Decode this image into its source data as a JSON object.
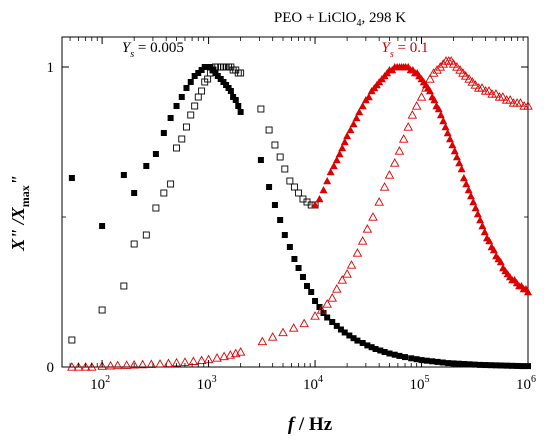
{
  "chart_data": {
    "type": "scatter",
    "title": "PEO + LiClO",
    "title_sub": "4",
    "title_suffix": ", 298 K",
    "xlabel_main": "f",
    "xlabel_unit": " / Hz",
    "ylabel_parts": {
      "x": "X",
      "pp": "\"",
      "slash": " /X",
      "max": "max",
      "pp2": "\""
    },
    "xscale": "log",
    "xlim": [
      42,
      1000000
    ],
    "ylim": [
      0,
      1.1
    ],
    "x_ticks": [
      {
        "value": 100,
        "base": "10",
        "exp": "2"
      },
      {
        "value": 1000,
        "base": "10",
        "exp": "3"
      },
      {
        "value": 10000,
        "base": "10",
        "exp": "4"
      },
      {
        "value": 100000,
        "base": "10",
        "exp": "5"
      },
      {
        "value": 1000000,
        "base": "10",
        "exp": "6"
      }
    ],
    "y_ticks": [
      {
        "value": 0,
        "label": "0"
      },
      {
        "value": 1,
        "label": "1"
      }
    ],
    "annotations": [
      {
        "letter": "Y",
        "sub": "s",
        "text": " = 0.005",
        "color": "#000000",
        "x": 300,
        "y": 1.05
      },
      {
        "letter": "Y",
        "sub": "s",
        "text": " = 0.1",
        "color": "#cc0000",
        "x": 70000,
        "y": 1.05
      }
    ],
    "colors": {
      "black": "#000000",
      "red": "#dd0000"
    },
    "series": [
      {
        "label": "Y_s = 0.005 filled",
        "marker": "square-filled",
        "color": "#000000",
        "x": [
          52,
          100,
          160,
          200,
          260,
          320,
          380,
          440,
          500,
          560,
          620,
          680,
          740,
          800,
          860,
          920,
          980,
          1040,
          1100,
          1160,
          1220,
          1300,
          1380,
          1460,
          1540,
          1620,
          1700,
          1800,
          1900,
          2000,
          3100,
          3700,
          4200,
          4700,
          5200,
          5800,
          6400,
          7000,
          7700,
          8400,
          9200,
          10000,
          11000,
          12000,
          13000,
          14500,
          16000,
          17500,
          19000,
          21000,
          23000,
          25000,
          28000,
          31000,
          34000,
          37000,
          41000,
          45000,
          50000,
          56000,
          62000,
          70000,
          80000,
          90000,
          100000,
          112000,
          126000,
          141000,
          158000,
          178000,
          200000,
          224000,
          251000,
          282000,
          316000,
          355000,
          398000,
          447000,
          501000,
          562000,
          631000,
          708000,
          794000,
          891000,
          1000000
        ],
        "y": [
          0.63,
          0.47,
          0.64,
          0.58,
          0.67,
          0.71,
          0.78,
          0.83,
          0.87,
          0.9,
          0.93,
          0.95,
          0.97,
          0.98,
          0.99,
          1.0,
          1.0,
          1.0,
          0.99,
          0.98,
          0.97,
          0.96,
          0.95,
          0.94,
          0.93,
          0.92,
          0.9,
          0.89,
          0.87,
          0.85,
          0.69,
          0.6,
          0.54,
          0.49,
          0.44,
          0.4,
          0.36,
          0.33,
          0.3,
          0.27,
          0.25,
          0.22,
          0.2,
          0.18,
          0.165,
          0.15,
          0.137,
          0.125,
          0.115,
          0.105,
          0.096,
          0.088,
          0.08,
          0.072,
          0.066,
          0.06,
          0.055,
          0.05,
          0.045,
          0.041,
          0.037,
          0.033,
          0.029,
          0.026,
          0.023,
          0.021,
          0.019,
          0.017,
          0.015,
          0.013,
          0.012,
          0.011,
          0.01,
          0.009,
          0.008,
          0.007,
          0.0065,
          0.006,
          0.0055,
          0.005,
          0.0045,
          0.004,
          0.0035,
          0.003,
          0.003
        ]
      },
      {
        "label": "Y_s = 0.005 open",
        "marker": "square-open",
        "color": "#000000",
        "x": [
          52,
          100,
          160,
          200,
          260,
          320,
          380,
          440,
          500,
          560,
          620,
          680,
          740,
          800,
          860,
          920,
          980,
          1040,
          1100,
          1160,
          1220,
          1300,
          1380,
          1460,
          1540,
          1620,
          1700,
          1800,
          1900,
          2000,
          3100,
          3700,
          4200,
          4700,
          5200,
          5800,
          6400,
          7000,
          7700,
          8400,
          9200,
          10000
        ],
        "y": [
          0.09,
          0.19,
          0.27,
          0.41,
          0.44,
          0.53,
          0.58,
          0.61,
          0.73,
          0.76,
          0.8,
          0.84,
          0.87,
          0.9,
          0.92,
          0.95,
          0.96,
          0.98,
          0.99,
          1.0,
          1.0,
          1.0,
          1.0,
          1.0,
          1.0,
          1.0,
          0.99,
          0.99,
          0.98,
          0.98,
          0.86,
          0.79,
          0.74,
          0.7,
          0.66,
          0.62,
          0.6,
          0.58,
          0.56,
          0.55,
          0.54,
          0.54
        ]
      },
      {
        "label": "Y_s = 0.1 filled",
        "marker": "triangle-filled",
        "color": "#dd0000",
        "x": [
          10000,
          11000,
          12000,
          13000,
          14000,
          15000,
          16000,
          17000,
          18000,
          19000,
          20000,
          21500,
          23000,
          24500,
          26000,
          28000,
          30000,
          32000,
          34000,
          36000,
          38000,
          40000,
          42500,
          45000,
          47500,
          50000,
          53000,
          56000,
          59000,
          62000,
          65000,
          68000,
          71000,
          75000,
          79000,
          83000,
          87000,
          91000,
          95000,
          100000,
          105000,
          110000,
          115000,
          120000,
          126000,
          132000,
          138000,
          145000,
          152000,
          160000,
          168000,
          176000,
          185000,
          195000,
          205000,
          215000,
          226000,
          238000,
          250000,
          263000,
          277000,
          291000,
          306000,
          322000,
          338000,
          355000,
          373000,
          392000,
          412000,
          433000,
          455000,
          478000,
          502000,
          528000,
          555000,
          583000,
          613000,
          644000,
          677000,
          711000,
          747000,
          785000,
          825000,
          867000,
          911000,
          957000,
          1000000
        ],
        "y": [
          0.54,
          0.56,
          0.59,
          0.62,
          0.65,
          0.67,
          0.69,
          0.71,
          0.73,
          0.75,
          0.77,
          0.79,
          0.81,
          0.83,
          0.85,
          0.87,
          0.89,
          0.9,
          0.92,
          0.93,
          0.94,
          0.95,
          0.96,
          0.97,
          0.98,
          0.99,
          0.99,
          1.0,
          1.0,
          1.0,
          1.0,
          1.0,
          1.0,
          1.0,
          0.99,
          0.99,
          0.98,
          0.98,
          0.97,
          0.96,
          0.95,
          0.94,
          0.93,
          0.92,
          0.9,
          0.89,
          0.87,
          0.86,
          0.84,
          0.82,
          0.8,
          0.78,
          0.76,
          0.74,
          0.72,
          0.7,
          0.68,
          0.66,
          0.63,
          0.61,
          0.59,
          0.57,
          0.55,
          0.53,
          0.51,
          0.49,
          0.47,
          0.45,
          0.43,
          0.42,
          0.4,
          0.39,
          0.37,
          0.36,
          0.35,
          0.33,
          0.32,
          0.31,
          0.3,
          0.29,
          0.29,
          0.28,
          0.27,
          0.27,
          0.26,
          0.26,
          0.25
        ]
      },
      {
        "label": "Y_s = 0.1 open",
        "marker": "triangle-open",
        "color": "#dd0000",
        "x": [
          52,
          60,
          70,
          80,
          100,
          120,
          140,
          170,
          200,
          240,
          290,
          350,
          420,
          500,
          600,
          720,
          860,
          1000,
          1200,
          1400,
          1600,
          1800,
          2000,
          3200,
          4000,
          5000,
          6300,
          7900,
          10000,
          11500,
          13000,
          14500,
          16000,
          18000,
          20000,
          22000,
          25000,
          28000,
          31000,
          35000,
          40000,
          45000,
          50000,
          56000,
          62000,
          68000,
          75000,
          82000,
          90000,
          100000,
          110000,
          120000,
          130000,
          140000,
          150000,
          160000,
          170000,
          180000,
          190000,
          200000,
          215000,
          230000,
          245000,
          260000,
          280000,
          300000,
          320000,
          345000,
          370000,
          400000,
          430000,
          460000,
          500000,
          540000,
          580000,
          630000,
          680000,
          730000,
          790000,
          850000,
          920000,
          1000000
        ],
        "y": [
          0.0,
          0.0,
          0.0,
          0.0,
          0.003,
          0.004,
          0.005,
          0.006,
          0.007,
          0.008,
          0.009,
          0.01,
          0.012,
          0.014,
          0.016,
          0.019,
          0.022,
          0.025,
          0.03,
          0.035,
          0.04,
          0.045,
          0.05,
          0.085,
          0.1,
          0.115,
          0.13,
          0.145,
          0.17,
          0.19,
          0.21,
          0.23,
          0.26,
          0.29,
          0.31,
          0.34,
          0.38,
          0.42,
          0.46,
          0.5,
          0.55,
          0.6,
          0.64,
          0.68,
          0.72,
          0.76,
          0.8,
          0.84,
          0.87,
          0.9,
          0.93,
          0.96,
          0.98,
          0.99,
          1.0,
          1.01,
          1.02,
          1.02,
          1.02,
          1.01,
          1.0,
          0.99,
          0.98,
          0.97,
          0.96,
          0.95,
          0.94,
          0.93,
          0.93,
          0.92,
          0.92,
          0.91,
          0.91,
          0.9,
          0.9,
          0.89,
          0.89,
          0.88,
          0.88,
          0.88,
          0.87,
          0.87
        ]
      }
    ]
  }
}
